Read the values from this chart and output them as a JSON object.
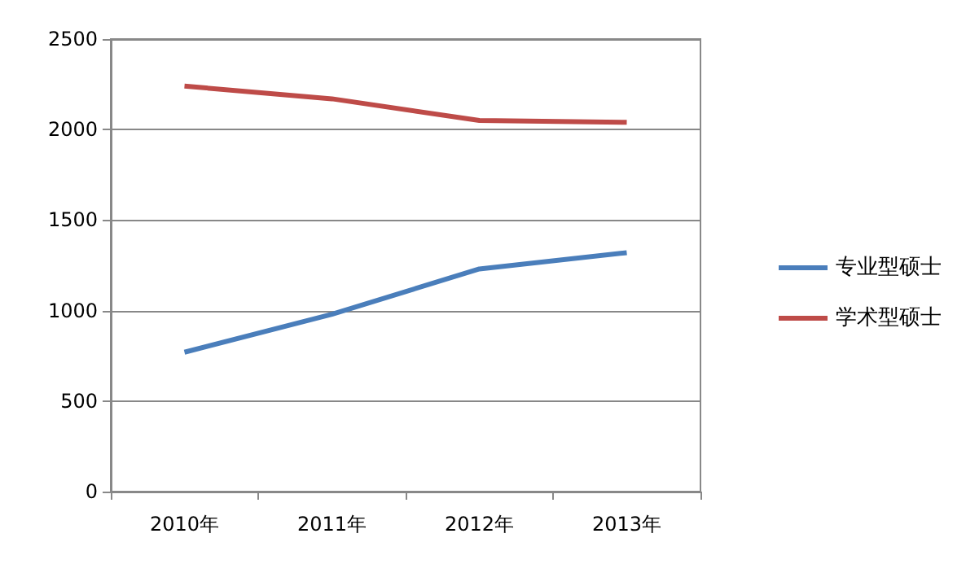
{
  "chart_data": {
    "type": "line",
    "categories": [
      "2010年",
      "2011年",
      "2012年",
      "2013年"
    ],
    "series": [
      {
        "name": "专业型硕士",
        "color": "#4a7ebb",
        "values": [
          770,
          980,
          1230,
          1320
        ]
      },
      {
        "name": "学术型硕士",
        "color": "#be4b48",
        "values": [
          2240,
          2170,
          2050,
          2040
        ]
      }
    ],
    "ylim": [
      0,
      2500
    ],
    "yticks": [
      0,
      500,
      1000,
      1500,
      2000,
      2500
    ],
    "grid": "y",
    "legend": "right",
    "marker": "none",
    "line_style": "solid"
  }
}
